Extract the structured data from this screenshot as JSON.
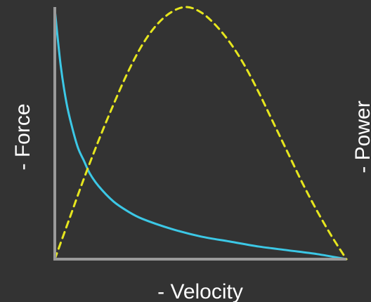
{
  "chart_data": {
    "type": "line",
    "xlabel": "- Velocity",
    "ylabel": "- Force",
    "y2label": "- Power",
    "xlim": [
      0,
      1
    ],
    "ylim": [
      0,
      1
    ],
    "grid": false,
    "colors": {
      "background": "#333333",
      "axis": "#9a9a9a",
      "force": "#3cc8e6",
      "power": "#e6e61e",
      "label_text": "#ffffff"
    },
    "series": [
      {
        "style": "solid",
        "x": [
          0.0,
          0.02,
          0.04,
          0.06,
          0.08,
          0.1,
          0.12,
          0.15,
          0.2,
          0.25,
          0.3,
          0.4,
          0.5,
          0.6,
          0.7,
          0.8,
          0.9,
          1.0
        ],
        "y": [
          0.99,
          0.77,
          0.62,
          0.52,
          0.44,
          0.39,
          0.34,
          0.29,
          0.23,
          0.19,
          0.16,
          0.12,
          0.09,
          0.07,
          0.05,
          0.035,
          0.02,
          0.0
        ]
      },
      {
        "style": "dashed",
        "x": [
          0.0,
          0.05,
          0.1,
          0.15,
          0.2,
          0.25,
          0.3,
          0.35,
          0.4,
          0.45,
          0.5,
          0.55,
          0.6,
          0.65,
          0.7,
          0.75,
          0.8,
          0.85,
          0.9,
          0.95,
          1.0
        ],
        "y": [
          0.0,
          0.16,
          0.32,
          0.47,
          0.61,
          0.74,
          0.85,
          0.93,
          0.98,
          1.0,
          0.98,
          0.93,
          0.86,
          0.77,
          0.66,
          0.54,
          0.42,
          0.3,
          0.19,
          0.09,
          0.0
        ]
      }
    ]
  }
}
